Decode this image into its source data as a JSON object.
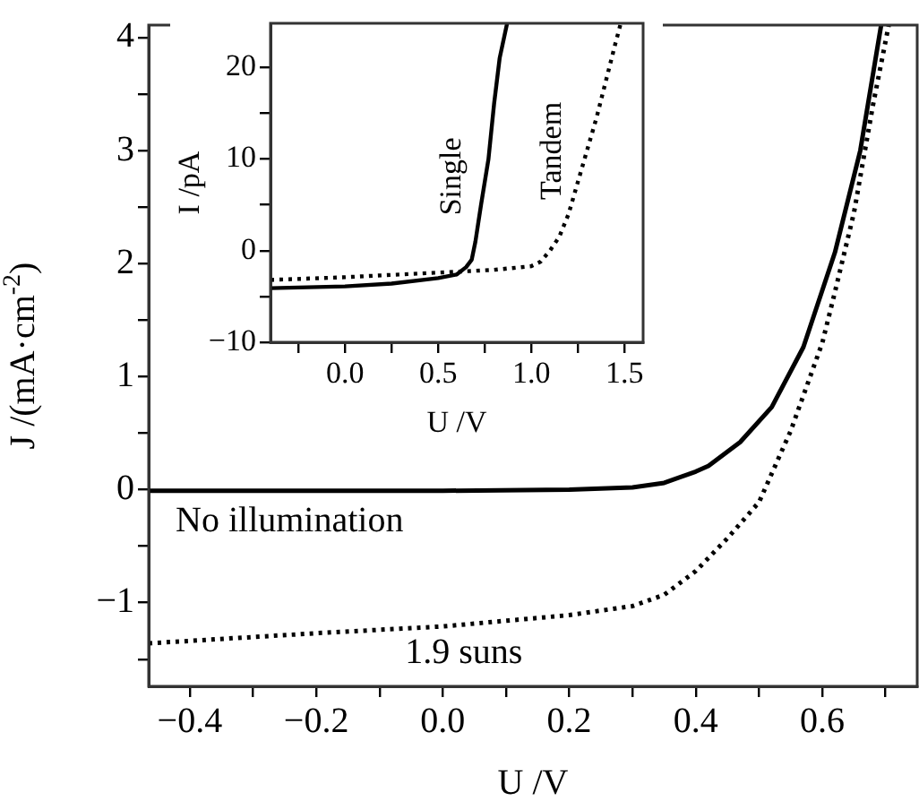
{
  "chart_data": [
    {
      "type": "line",
      "xlabel": "U /V",
      "ylabel": "J /(mA·cm$^{-2}$)",
      "xlim": [
        -0.465,
        0.75
      ],
      "ylim": [
        -1.74,
        4.11
      ],
      "xticks": [
        {
          "value": -0.4,
          "label": "−0.4"
        },
        {
          "value": -0.3,
          "label": null
        },
        {
          "value": -0.2,
          "label": "−0.2"
        },
        {
          "value": -0.1,
          "label": null
        },
        {
          "value": 0,
          "label": "0.0"
        },
        {
          "value": 0.1,
          "label": null
        },
        {
          "value": 0.2,
          "label": "0.2"
        },
        {
          "value": 0.3,
          "label": null
        },
        {
          "value": 0.4,
          "label": "0.4"
        },
        {
          "value": 0.5,
          "label": null
        },
        {
          "value": 0.6,
          "label": "0.6"
        },
        {
          "value": 0.7,
          "label": null
        }
      ],
      "yticks": [
        {
          "value": -1.5,
          "label": null
        },
        {
          "value": -1,
          "label": "−1"
        },
        {
          "value": -0.5,
          "label": null
        },
        0,
        {
          "value": 0.5,
          "label": null
        },
        1,
        {
          "value": 1.5,
          "label": null
        },
        2,
        {
          "value": 2.5,
          "label": null
        },
        3,
        {
          "value": 3.5,
          "label": null
        },
        4
      ],
      "grid": false,
      "legend": false,
      "marker": "none",
      "series": [
        {
          "name": "No illumination",
          "color": "#000000",
          "line_style": "solid",
          "x": [
            -0.465,
            -0.2,
            0.0,
            0.2,
            0.3,
            0.35,
            0.4,
            0.42,
            0.47,
            0.52,
            0.57,
            0.62,
            0.66,
            0.693
          ],
          "values": [
            -0.01,
            -0.01,
            -0.01,
            0.0,
            0.02,
            0.06,
            0.16,
            0.21,
            0.42,
            0.73,
            1.26,
            2.1,
            3.0,
            4.11
          ]
        },
        {
          "name": "1.9 suns",
          "color": "#000000",
          "line_style": "dotted",
          "x": [
            -0.465,
            -0.2,
            0.0,
            0.2,
            0.3,
            0.35,
            0.4,
            0.45,
            0.5,
            0.55,
            0.6,
            0.62,
            0.65,
            0.68,
            0.705
          ],
          "values": [
            -1.36,
            -1.27,
            -1.21,
            -1.11,
            -1.03,
            -0.93,
            -0.72,
            -0.43,
            -0.11,
            0.52,
            1.3,
            1.75,
            2.45,
            3.4,
            4.11
          ]
        }
      ]
    },
    {
      "type": "line",
      "xlabel": "U /V",
      "ylabel": "I /pA",
      "xlim": [
        -0.4,
        1.6
      ],
      "ylim": [
        -10,
        24.8
      ],
      "xticks": [
        {
          "value": -0.25,
          "label": null
        },
        {
          "value": 0,
          "label": "0.0"
        },
        {
          "value": 0.25,
          "label": null
        },
        0.5,
        {
          "value": 0.75,
          "label": null
        },
        {
          "value": 1,
          "label": "1.0"
        },
        {
          "value": 1.25,
          "label": null
        },
        1.5
      ],
      "yticks": [
        {
          "value": -10,
          "label": "−10"
        },
        {
          "value": -5,
          "label": null
        },
        0,
        {
          "value": 5,
          "label": null
        },
        10,
        {
          "value": 15,
          "label": null
        },
        20
      ],
      "grid": false,
      "legend": false,
      "marker": "none",
      "series": [
        {
          "name": "Single",
          "color": "#000000",
          "line_style": "solid",
          "x": [
            -0.4,
            0.0,
            0.25,
            0.5,
            0.6,
            0.65,
            0.68,
            0.7,
            0.73,
            0.77,
            0.8,
            0.83,
            0.87
          ],
          "values": [
            -4.1,
            -3.9,
            -3.6,
            -3.0,
            -2.6,
            -1.8,
            -1,
            1,
            5,
            10,
            16,
            21,
            24.8
          ]
        },
        {
          "name": "Tandem",
          "color": "#000000",
          "line_style": "dotted",
          "x": [
            -0.4,
            0.0,
            0.5,
            0.8,
            1.0,
            1.05,
            1.1,
            1.15,
            1.2,
            1.25,
            1.3,
            1.35,
            1.4,
            1.45,
            1.48
          ],
          "values": [
            -3.2,
            -2.9,
            -2.4,
            -2.1,
            -1.7,
            -1.2,
            0,
            1.5,
            4,
            7.5,
            11,
            14.5,
            18.5,
            22.5,
            24.8
          ]
        }
      ]
    }
  ]
}
